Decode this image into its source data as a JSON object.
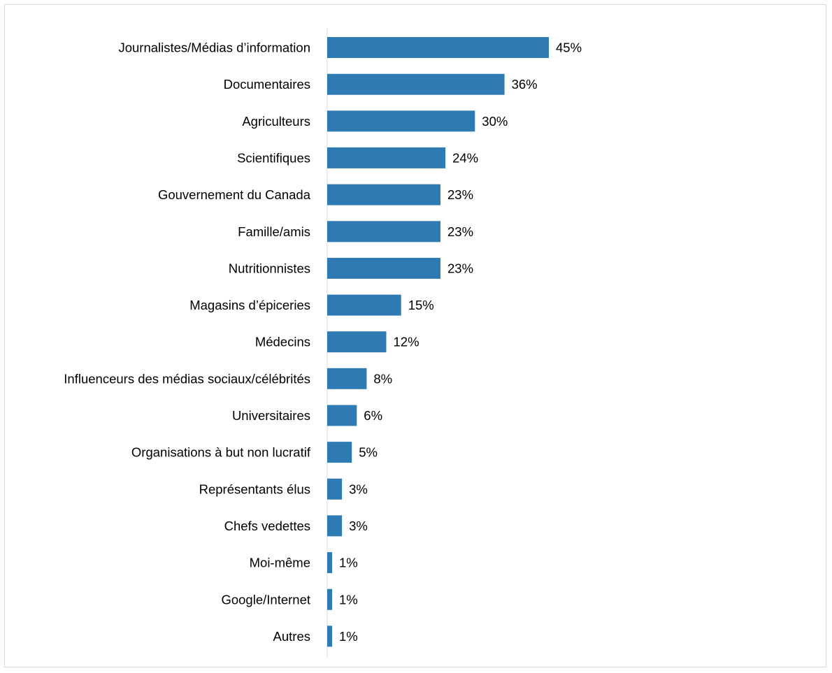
{
  "chart_data": {
    "type": "bar",
    "orientation": "horizontal",
    "title": "",
    "xlabel": "",
    "ylabel": "",
    "bar_color": "#2e7bb4",
    "xlim": [
      0,
      45
    ],
    "grid": false,
    "legend": "none",
    "categories": [
      "Journalistes/Médias d’information",
      "Documentaires",
      "Agriculteurs",
      "Scientifiques",
      "Gouvernement du Canada",
      "Famille/amis",
      "Nutritionnistes",
      "Magasins d’épiceries",
      "Médecins",
      "Influenceurs des médias sociaux/célébrités",
      "Universitaires",
      "Organisations à but non lucratif",
      "Représentants élus",
      "Chefs vedettes",
      "Moi-même",
      "Google/Internet",
      "Autres"
    ],
    "values": [
      45,
      36,
      30,
      24,
      23,
      23,
      23,
      15,
      12,
      8,
      6,
      5,
      3,
      3,
      1,
      1,
      1
    ],
    "data_labels": [
      "45%",
      "36%",
      "30%",
      "24%",
      "23%",
      "23%",
      "23%",
      "15%",
      "12%",
      "8%",
      "6%",
      "5%",
      "3%",
      "3%",
      "1%",
      "1%",
      "1%"
    ]
  }
}
